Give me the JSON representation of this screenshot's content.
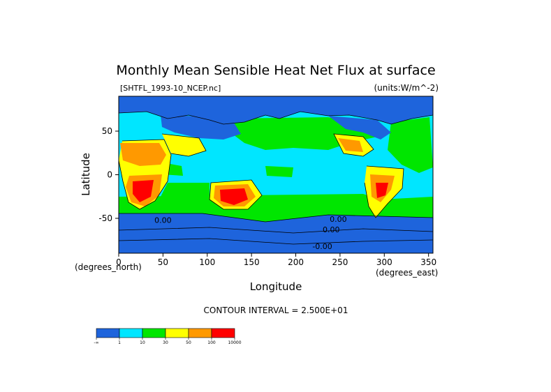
{
  "chart_data": {
    "type": "heatmap",
    "title": "Monthly Mean Sensible Heat Net Flux at surface",
    "file_label": "[SHTFL_1993-10_NCEP.nc]",
    "units_label": "(units:W/m^-2)",
    "xlabel": "Longitude",
    "ylabel": "Latitude",
    "x_units": "(degrees_east)",
    "y_units": "(degrees_north)",
    "xlim": [
      0,
      355
    ],
    "ylim": [
      -90,
      90
    ],
    "x_ticks": [
      0,
      50,
      100,
      150,
      200,
      250,
      300,
      350
    ],
    "y_ticks": [
      50,
      0,
      -50
    ],
    "contour_interval_text": "CONTOUR INTERVAL = 2.500E+01",
    "contour_labels": [
      {
        "text": "0.00",
        "x": 50,
        "y": -55
      },
      {
        "text": "0.00",
        "x": 248,
        "y": -54
      },
      {
        "text": "0.00",
        "x": 240,
        "y": -66
      },
      {
        "text": "-0.00",
        "x": 230,
        "y": -85
      }
    ],
    "colorbar": {
      "colors": [
        "#1e64dc",
        "#00e6ff",
        "#00e600",
        "#ffff00",
        "#ff9900",
        "#ff0000"
      ],
      "labels": [
        "-∞",
        "1",
        "10",
        "30",
        "50",
        "100",
        "10000"
      ]
    },
    "regions": [
      {
        "name": "ocean_background",
        "level": 1
      },
      {
        "name": "arctic_and_highlatitude_land",
        "level": 0
      },
      {
        "name": "antarctic_ocean_band",
        "level": 0
      },
      {
        "name": "north_atlantic_and_pacific_westerlies",
        "level": 2
      },
      {
        "name": "africa_sahara",
        "level": 4
      },
      {
        "name": "southern_africa",
        "level": 5
      },
      {
        "name": "australia",
        "level": 5
      },
      {
        "name": "south_america_east",
        "level": 4
      },
      {
        "name": "middle_east",
        "level": 3
      },
      {
        "name": "north_america_west",
        "level": 3
      }
    ]
  }
}
